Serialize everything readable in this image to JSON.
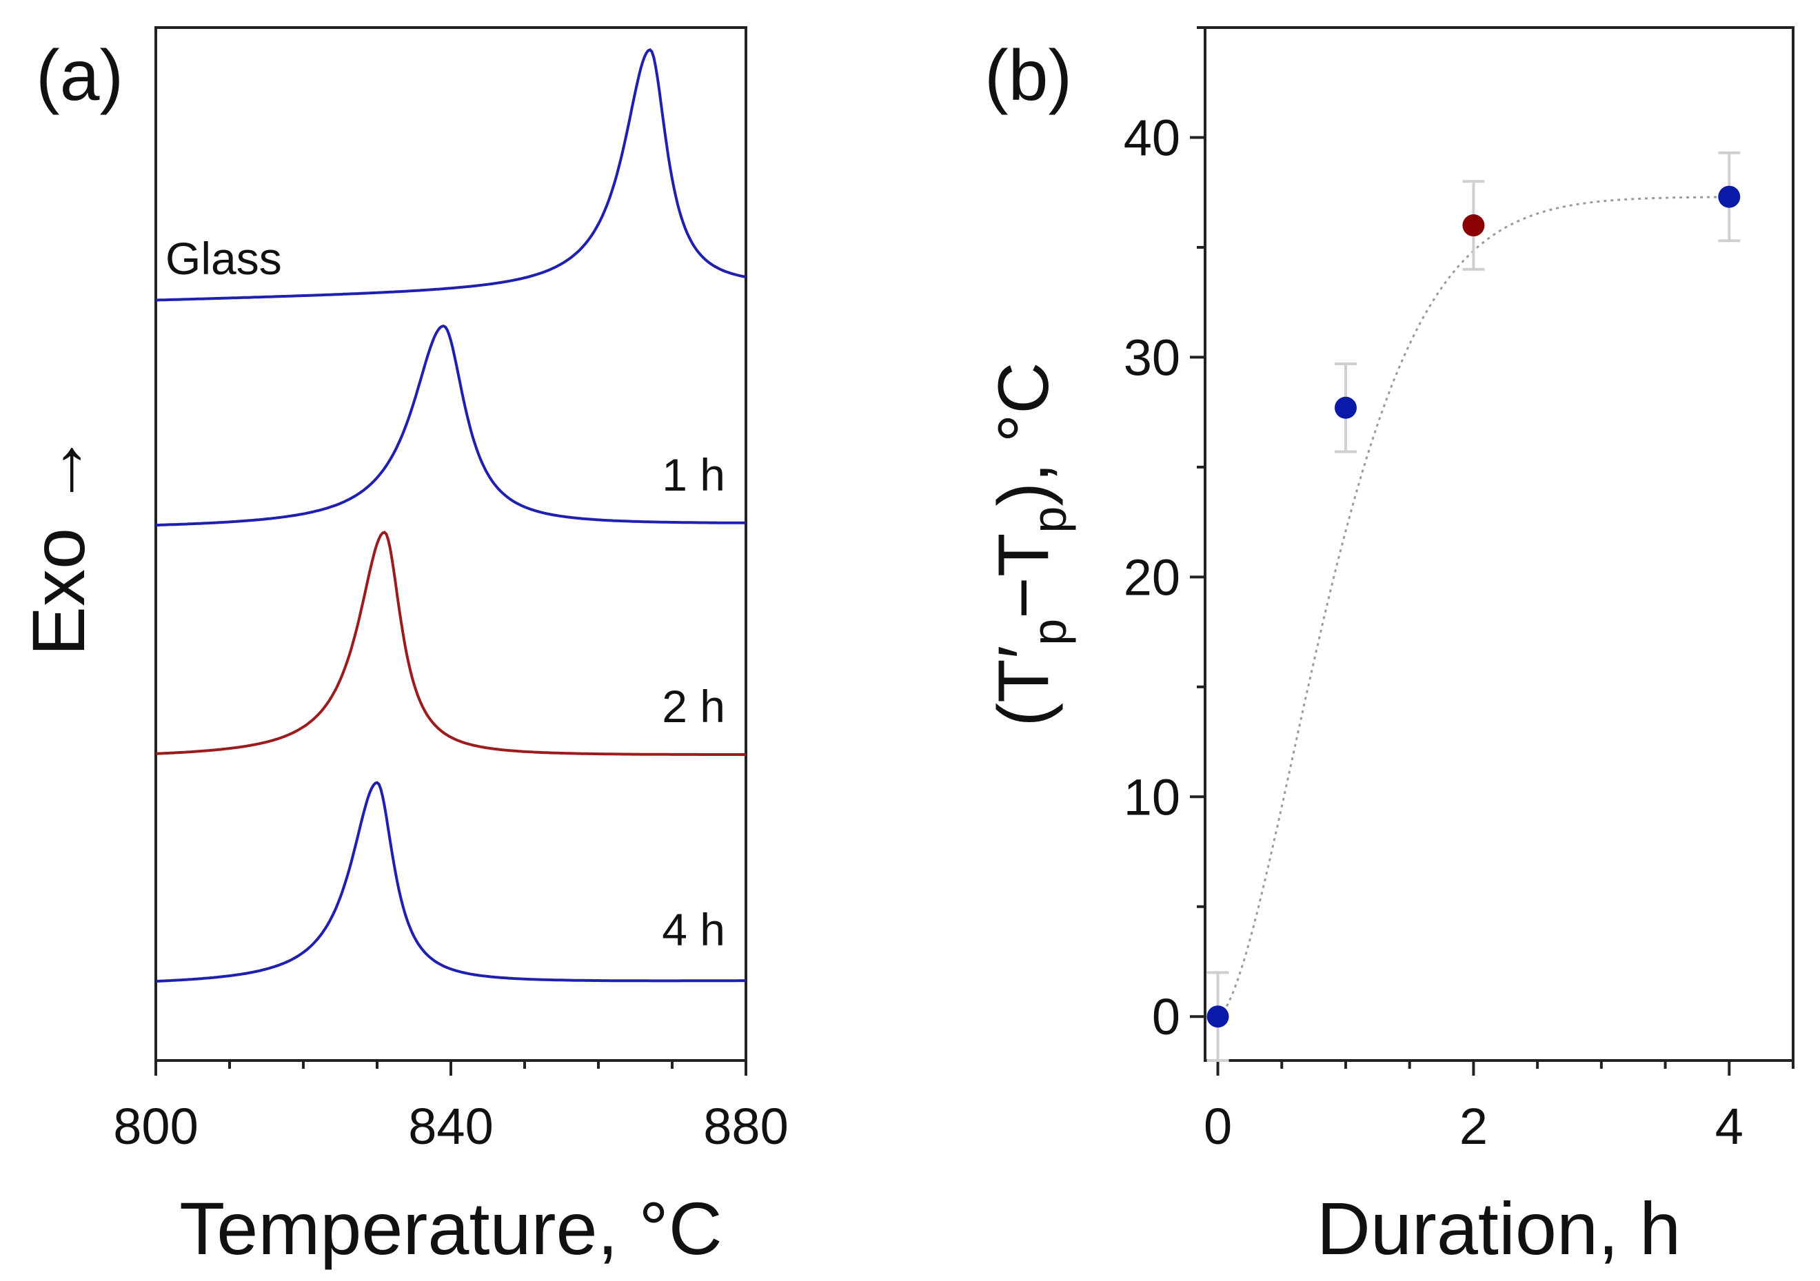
{
  "chart_data": [
    {
      "panel": "(a)",
      "type": "line",
      "title": "",
      "xlabel": "Temperature, °C",
      "ylabel": "Exo →",
      "xlim": [
        800,
        880
      ],
      "xticks": [
        "800",
        "840",
        "880"
      ],
      "grid": false,
      "series": [
        {
          "name": "Glass",
          "label": "Glass",
          "peak_temperature": 867,
          "color": "#1f1fb0"
        },
        {
          "name": "1 h",
          "label": "1 h",
          "peak_temperature": 839,
          "color": "#1f1fb0"
        },
        {
          "name": "2 h",
          "label": "2 h",
          "peak_temperature": 831,
          "color": "#9b1c1c"
        },
        {
          "name": "4 h",
          "label": "4 h",
          "peak_temperature": 830,
          "color": "#1f1fb0"
        }
      ]
    },
    {
      "panel": "(b)",
      "type": "scatter",
      "title": "",
      "xlabel": "Duration, h",
      "ylabel": "(T′p−Tp), °C",
      "ylabel_parts": {
        "open": "(T′",
        "sub1": "p",
        "mid": "−T",
        "sub2": "p",
        "close": "), ",
        "unit": "°C"
      },
      "xlim": [
        -0.1,
        4.5
      ],
      "ylim": [
        -2,
        45
      ],
      "xticks": [
        "0",
        "2",
        "4"
      ],
      "yticks": [
        "0",
        "10",
        "20",
        "30",
        "40"
      ],
      "grid": false,
      "points": [
        {
          "x": 0,
          "y": 0,
          "err": 2.0,
          "color": "#0a1aa8"
        },
        {
          "x": 1,
          "y": 27.7,
          "err": 2.0,
          "color": "#0a1aa8"
        },
        {
          "x": 2,
          "y": 36.0,
          "err": 2.0,
          "color": "#8b0000"
        },
        {
          "x": 4,
          "y": 37.3,
          "err": 2.0,
          "color": "#0a1aa8"
        }
      ],
      "fit_curve": {
        "style": "dotted",
        "color": "#999999",
        "model": "y = 37.3·(1 − exp(−(x/1.07)^1.6))"
      }
    }
  ]
}
